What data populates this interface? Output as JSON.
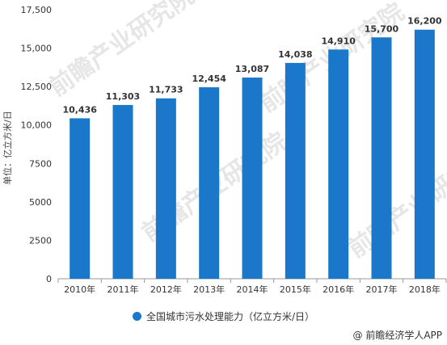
{
  "chart_data": {
    "type": "bar",
    "categories": [
      "2010年",
      "2011年",
      "2012年",
      "2013年",
      "2014年",
      "2015年",
      "2016年",
      "2017年",
      "2018年"
    ],
    "values": [
      10436,
      11303,
      11733,
      12454,
      13087,
      14038,
      14910,
      15700,
      16200
    ],
    "value_labels": [
      "10,436",
      "11,303",
      "11,733",
      "12,454",
      "13,087",
      "14,038",
      "14,910",
      "15,700",
      "16,200"
    ],
    "ylabel": "单位：亿立方米/日",
    "ylim": [
      0,
      17500
    ],
    "yticks": [
      0,
      2500,
      5000,
      7500,
      10000,
      12500,
      15000,
      17500
    ],
    "ytick_labels": [
      "0",
      "2500",
      "5000",
      "7500",
      "10,000",
      "12,500",
      "15,000",
      "17,500"
    ],
    "series": [
      {
        "name": "全国城市污水处理能力（亿立方米/日）",
        "values": [
          10436,
          11303,
          11733,
          12454,
          13087,
          14038,
          14910,
          15700,
          16200
        ]
      }
    ],
    "legend_position": "bottom",
    "grid": false,
    "bar_color": "#1a77c9"
  },
  "legend": {
    "label": "全国城市污水处理能力（亿立方米/日）"
  },
  "credit": "@ 前瞻经济学人APP",
  "watermark": "前瞻产业研究院"
}
